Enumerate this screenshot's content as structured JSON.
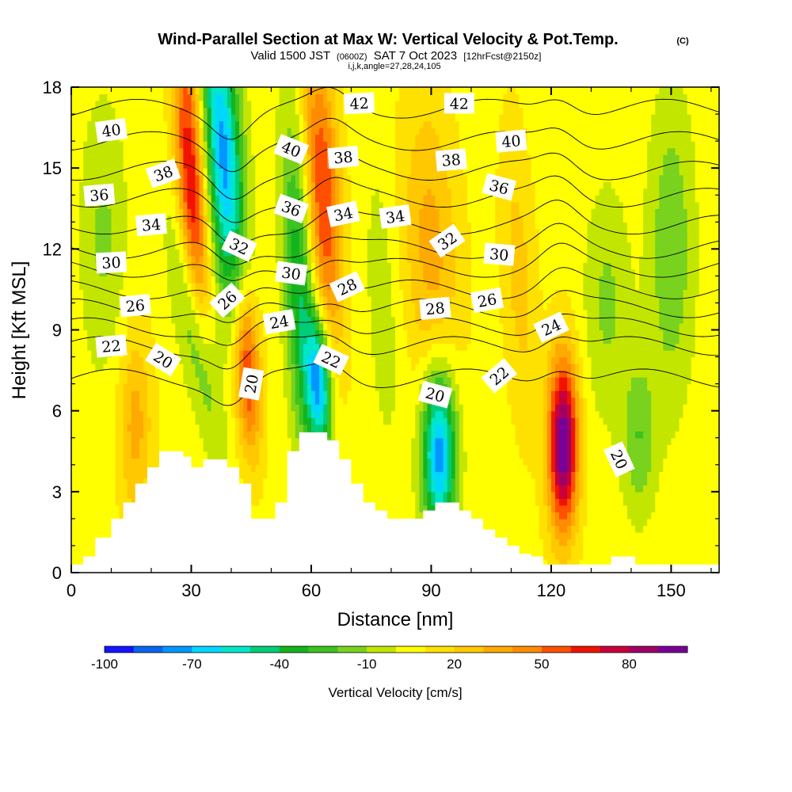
{
  "chart_data": {
    "type": "heatmap",
    "title": "Wind-Parallel Section at Max W: Vertical Velocity & Pot.Temp.",
    "title_mark": "(C)",
    "subtitle_parts": [
      "Valid 1500 JST",
      "(0600Z)",
      "SAT 7 Oct 2023",
      "[12hrFcst@2150z]"
    ],
    "subtitle2": "i,j,k,angle=27,28,24,105",
    "xlabel": "Distance [nm]",
    "ylabel": "Height [Kft MSL]",
    "xlim": [
      0,
      162
    ],
    "ylim": [
      0,
      18
    ],
    "xticks": [
      0,
      30,
      60,
      90,
      120,
      150
    ],
    "yticks": [
      0,
      3,
      6,
      9,
      12,
      15,
      18
    ],
    "colorbar": {
      "label": "Vertical Velocity [cm/s]",
      "tick_values": [
        -100,
        -70,
        -40,
        -10,
        20,
        50,
        80
      ],
      "levels": [
        -100,
        -90,
        -80,
        -70,
        -60,
        -50,
        -40,
        -30,
        -20,
        -10,
        0,
        10,
        20,
        30,
        40,
        50,
        60,
        70,
        80,
        90,
        100
      ],
      "colors": [
        "#1414ff",
        "#0a64f0",
        "#0096ff",
        "#00d7ff",
        "#00e6c8",
        "#00cd78",
        "#14b41e",
        "#3cc31e",
        "#78d21e",
        "#c3e600",
        "#ffff00",
        "#ffe100",
        "#ffc800",
        "#ffaa00",
        "#ff8c00",
        "#ff5000",
        "#f01400",
        "#c8003c",
        "#a00064",
        "#780096"
      ]
    },
    "terrain": [
      [
        0,
        0.3
      ],
      [
        3,
        0.6
      ],
      [
        6,
        1.3
      ],
      [
        10,
        2.0
      ],
      [
        13,
        2.6
      ],
      [
        16,
        3.3
      ],
      [
        19,
        3.9
      ],
      [
        22,
        4.5
      ],
      [
        25,
        4.5
      ],
      [
        28,
        4.3
      ],
      [
        30,
        3.9
      ],
      [
        33,
        4.2
      ],
      [
        36,
        4.2
      ],
      [
        39,
        3.9
      ],
      [
        42,
        3.3
      ],
      [
        45,
        2.0
      ],
      [
        48,
        2.0
      ],
      [
        51,
        2.6
      ],
      [
        54,
        4.5
      ],
      [
        57,
        5.2
      ],
      [
        61,
        5.2
      ],
      [
        64,
        4.9
      ],
      [
        67,
        4.2
      ],
      [
        70,
        3.3
      ],
      [
        73,
        2.6
      ],
      [
        76,
        2.3
      ],
      [
        79,
        2.0
      ],
      [
        82,
        2.0
      ],
      [
        85,
        2.0
      ],
      [
        88,
        2.3
      ],
      [
        91,
        2.6
      ],
      [
        94,
        2.6
      ],
      [
        97,
        2.3
      ],
      [
        100,
        2.0
      ],
      [
        103,
        1.6
      ],
      [
        106,
        1.3
      ],
      [
        109,
        1.0
      ],
      [
        112,
        0.7
      ],
      [
        115,
        0.6
      ],
      [
        118,
        0.3
      ],
      [
        135,
        0.6
      ],
      [
        141,
        0.3
      ],
      [
        162,
        0.3
      ]
    ],
    "w_features": [
      {
        "x": 30,
        "z": 14.5,
        "amp": 65,
        "wx": 2.6,
        "wz": 4.5,
        "tilt": -0.35
      },
      {
        "x": 38,
        "z": 15.5,
        "amp": -80,
        "wx": 3.3,
        "wz": 4.0,
        "tilt": -0.45
      },
      {
        "x": 31,
        "z": 8.8,
        "amp": -40,
        "wx": 2.8,
        "wz": 3.0,
        "tilt": -1.0
      },
      {
        "x": 44,
        "z": 7.5,
        "amp": 60,
        "wx": 2.3,
        "wz": 2.2,
        "tilt": -0.3
      },
      {
        "x": 57,
        "z": 10.5,
        "amp": -45,
        "wx": 2.6,
        "wz": 4.5,
        "tilt": -0.3
      },
      {
        "x": 62,
        "z": 7.0,
        "amp": -75,
        "wx": 2.2,
        "wz": 1.8,
        "tilt": -0.3
      },
      {
        "x": 63,
        "z": 14.0,
        "amp": 55,
        "wx": 3.0,
        "wz": 4.0,
        "tilt": -0.35
      },
      {
        "x": 92,
        "z": 4.5,
        "amp": -85,
        "wx": 3.0,
        "wz": 2.2,
        "tilt": 0
      },
      {
        "x": 90,
        "z": 12.0,
        "amp": 28,
        "wx": 5.0,
        "wz": 4.0,
        "tilt": -0.3
      },
      {
        "x": 123,
        "z": 4.8,
        "amp": 95,
        "wx": 2.6,
        "wz": 2.3,
        "tilt": 0
      },
      {
        "x": 142,
        "z": 5.0,
        "amp": -25,
        "wx": 3.0,
        "wz": 2.0,
        "tilt": 0
      },
      {
        "x": 16,
        "z": 5.5,
        "amp": 28,
        "wx": 3.0,
        "wz": 2.5,
        "tilt": 0
      },
      {
        "x": 8,
        "z": 12.5,
        "amp": -18,
        "wx": 4.0,
        "wz": 3.5,
        "tilt": 0
      },
      {
        "x": 150,
        "z": 12.0,
        "amp": -25,
        "wx": 4.0,
        "wz": 4.0,
        "tilt": 0
      },
      {
        "x": 134,
        "z": 10.0,
        "amp": -18,
        "wx": 4.0,
        "wz": 3.0,
        "tilt": 0
      },
      {
        "x": 78,
        "z": 10.0,
        "amp": -12,
        "wx": 3.0,
        "wz": 4.0,
        "tilt": -0.3
      },
      {
        "x": 112,
        "z": 11.0,
        "amp": 18,
        "wx": 3.0,
        "wz": 4.0,
        "tilt": -0.3
      }
    ],
    "w_background": 6,
    "theta_contours": [
      {
        "value": 20,
        "z0": 7.2
      },
      {
        "value": 22,
        "z0": 8.4
      },
      {
        "value": 24,
        "z0": 9.1
      },
      {
        "value": 26,
        "z0": 9.8
      },
      {
        "value": 28,
        "z0": 10.5
      },
      {
        "value": 30,
        "z0": 11.3
      },
      {
        "value": 32,
        "z0": 12.0
      },
      {
        "value": 34,
        "z0": 12.9
      },
      {
        "value": 36,
        "z0": 13.9
      },
      {
        "value": 38,
        "z0": 14.9
      },
      {
        "value": 40,
        "z0": 16.0
      },
      {
        "value": 42,
        "z0": 17.2
      }
    ],
    "contour_labels": [
      {
        "text": "40",
        "x": 10,
        "z": 16.4,
        "angle": -8
      },
      {
        "text": "38",
        "x": 23,
        "z": 14.8,
        "angle": -20
      },
      {
        "text": "36",
        "x": 7,
        "z": 14.0,
        "angle": -5
      },
      {
        "text": "34",
        "x": 20,
        "z": 12.9,
        "angle": -5
      },
      {
        "text": "30",
        "x": 10,
        "z": 11.5,
        "angle": -3
      },
      {
        "text": "26",
        "x": 16,
        "z": 9.9,
        "angle": -5
      },
      {
        "text": "22",
        "x": 10,
        "z": 8.4,
        "angle": -5
      },
      {
        "text": "20",
        "x": 23,
        "z": 7.9,
        "angle": 32
      },
      {
        "text": "32",
        "x": 42,
        "z": 12.1,
        "angle": 25
      },
      {
        "text": "26",
        "x": 39,
        "z": 10.1,
        "angle": -42
      },
      {
        "text": "24",
        "x": 52,
        "z": 9.3,
        "angle": -10
      },
      {
        "text": "20",
        "x": 45,
        "z": 7.0,
        "angle": -80
      },
      {
        "text": "40",
        "x": 55,
        "z": 15.7,
        "angle": 22
      },
      {
        "text": "36",
        "x": 55,
        "z": 13.5,
        "angle": 20
      },
      {
        "text": "30",
        "x": 55,
        "z": 11.1,
        "angle": 8
      },
      {
        "text": "22",
        "x": 65,
        "z": 7.9,
        "angle": 25
      },
      {
        "text": "38",
        "x": 68,
        "z": 15.4,
        "angle": -5
      },
      {
        "text": "34",
        "x": 68,
        "z": 13.3,
        "angle": -12
      },
      {
        "text": "28",
        "x": 69,
        "z": 10.6,
        "angle": -25
      },
      {
        "text": "42",
        "x": 72,
        "z": 17.4,
        "angle": -3
      },
      {
        "text": "34",
        "x": 81,
        "z": 13.2,
        "angle": -8
      },
      {
        "text": "20",
        "x": 91,
        "z": 6.6,
        "angle": 15
      },
      {
        "text": "28",
        "x": 91,
        "z": 9.8,
        "angle": -5
      },
      {
        "text": "32",
        "x": 94,
        "z": 12.3,
        "angle": -35
      },
      {
        "text": "38",
        "x": 95,
        "z": 15.3,
        "angle": -5
      },
      {
        "text": "42",
        "x": 97,
        "z": 17.4,
        "angle": 0
      },
      {
        "text": "26",
        "x": 104,
        "z": 10.1,
        "angle": -10
      },
      {
        "text": "30",
        "x": 107,
        "z": 11.8,
        "angle": 5
      },
      {
        "text": "22",
        "x": 107,
        "z": 7.3,
        "angle": -40
      },
      {
        "text": "36",
        "x": 107,
        "z": 14.3,
        "angle": 15
      },
      {
        "text": "40",
        "x": 110,
        "z": 16.0,
        "angle": -5
      },
      {
        "text": "24",
        "x": 120,
        "z": 9.1,
        "angle": -25
      },
      {
        "text": "20",
        "x": 137,
        "z": 4.2,
        "angle": 65
      }
    ]
  }
}
